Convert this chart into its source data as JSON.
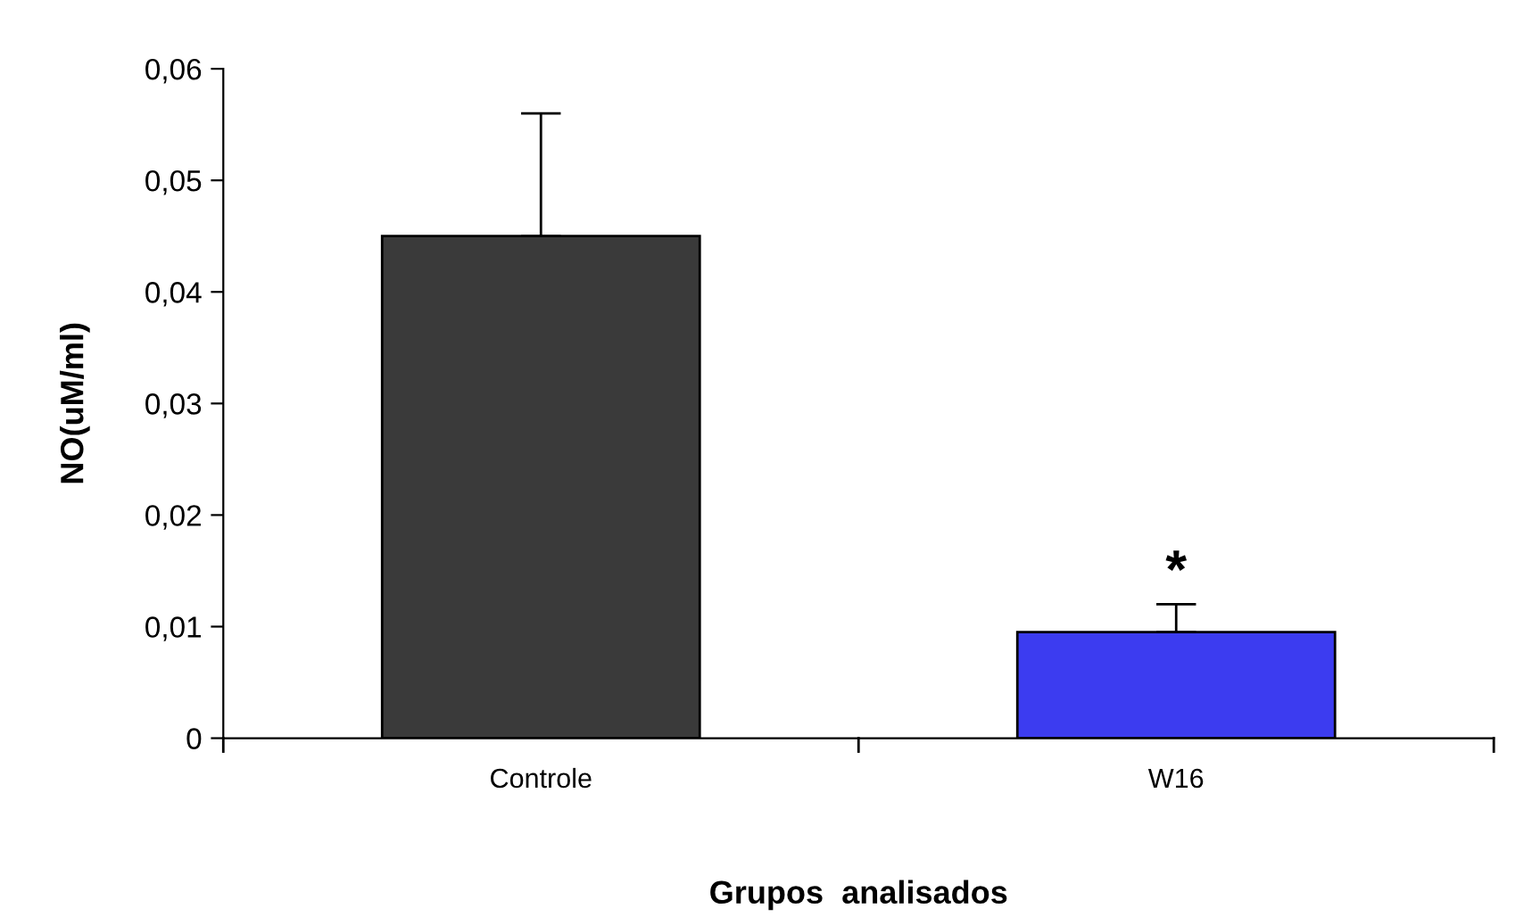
{
  "chart_data": {
    "type": "bar",
    "xlabel": "Grupos  analisados",
    "ylabel": "NO(uM/ml)",
    "categories": [
      "Controle",
      "W16"
    ],
    "values": [
      0.045,
      0.0095
    ],
    "colors": [
      "#3a3a3a",
      "#3c3cf0"
    ],
    "errors": [
      [
        0.045,
        0.056
      ],
      [
        0.0095,
        0.012
      ]
    ],
    "ylim": [
      0,
      0.06
    ],
    "yticks": [
      0,
      {
        "value": 0.01,
        "label": "0,01"
      },
      {
        "value": 0.02,
        "label": "0,02"
      },
      {
        "value": 0.03,
        "label": "0,03"
      },
      {
        "value": 0.04,
        "label": "0,04"
      },
      {
        "value": 0.05,
        "label": "0,05"
      },
      {
        "value": 0.06,
        "label": "0,06"
      }
    ],
    "annotations": [
      {
        "text": "*",
        "x": "W16",
        "y": 0.012
      }
    ],
    "grid": false,
    "legend": false
  }
}
